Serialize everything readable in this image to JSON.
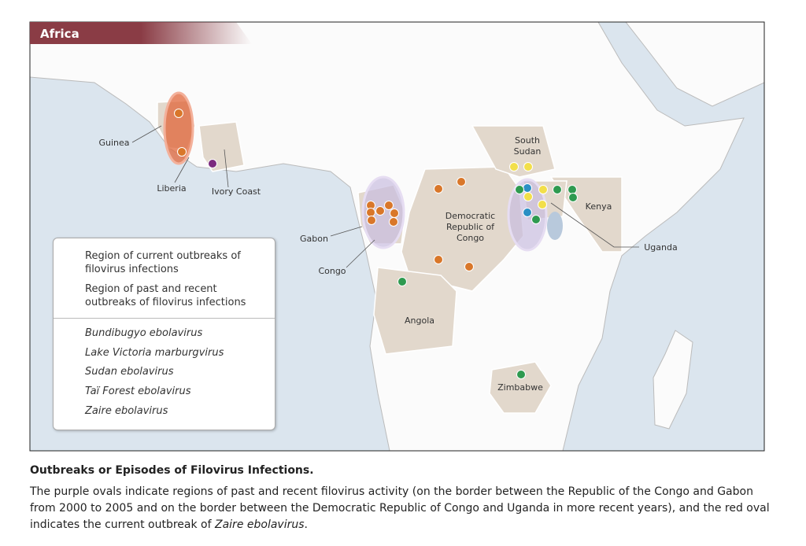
{
  "map": {
    "title": "Africa",
    "labels": [
      "Guinea",
      "Liberia",
      "Ivory Coast",
      "Gabon",
      "Congo",
      "Democratic Republic of Congo",
      "South Sudan",
      "Kenya",
      "Uganda",
      "Angola",
      "Zimbabwe"
    ],
    "legend": {
      "regions": [
        {
          "label": "Region of current outbreaks of filovirus infections",
          "color": "#e0663a"
        },
        {
          "label": "Region of past and recent outbreaks of filovirus infections",
          "color": "#a48cc8"
        }
      ],
      "viruses": [
        {
          "label": "Bundibugyo ebolavirus",
          "color": "#2a8fc4"
        },
        {
          "label": "Lake Victoria marburgvirus",
          "color": "#2e9a50"
        },
        {
          "label": "Sudan ebolavirus",
          "color": "#f2df4a"
        },
        {
          "label": "Taï Forest ebolavirus",
          "color": "#7b2a7e"
        },
        {
          "label": "Zaire ebolavirus",
          "color": "#d9772a"
        }
      ]
    }
  },
  "caption": {
    "title": "Outbreaks or Episodes of Filovirus Infections.",
    "text_parts": [
      "The purple ovals indicate regions of past and recent filovirus activity (on the border between the Republic of the Congo and Gabon from 2000 to 2005 and on the border between the Democratic Republic of Congo and Uganda in more recent years), and the red oval indicates the current outbreak of ",
      "Zaire ebolavirus",
      "."
    ]
  }
}
